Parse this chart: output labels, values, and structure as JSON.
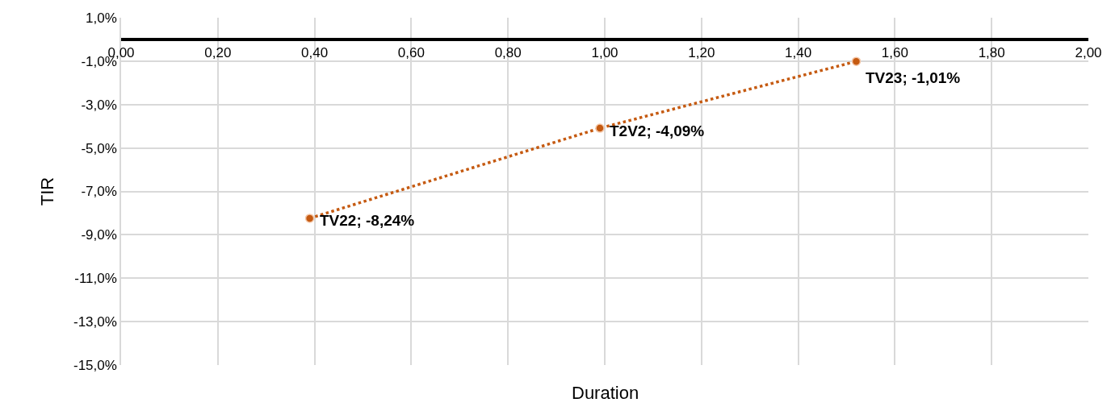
{
  "chart_data": {
    "type": "scatter",
    "xlabel": "Duration",
    "ylabel": "TIR",
    "series": [
      {
        "color": "#c55a11",
        "x": [
          0.39,
          0.99,
          1.52
        ],
        "values": [
          -8.24,
          -4.09,
          -1.01
        ],
        "line_style": "dotted",
        "marker": "circle"
      }
    ],
    "annotations": [
      {
        "text": "TV22; -8,24%",
        "x": 0.39,
        "y": -8.24
      },
      {
        "text": "T2V2; -4,09%",
        "x": 0.99,
        "y": -4.09
      },
      {
        "text": "TV23; -1,01%",
        "x": 1.52,
        "y": -1.01
      }
    ],
    "xlim": [
      0,
      2
    ],
    "xticks": [
      {
        "value": 0,
        "label": "0,00"
      },
      {
        "value": 0.2,
        "label": "0,20"
      },
      {
        "value": 0.4,
        "label": "0,40"
      },
      {
        "value": 0.6,
        "label": "0,60"
      },
      {
        "value": 0.8,
        "label": "0,80"
      },
      {
        "value": 1.0,
        "label": "1,00"
      },
      {
        "value": 1.2,
        "label": "1,20"
      },
      {
        "value": 1.4,
        "label": "1,40"
      },
      {
        "value": 1.6,
        "label": "1,60"
      },
      {
        "value": 1.8,
        "label": "1,80"
      },
      {
        "value": 2.0,
        "label": "2,00"
      }
    ],
    "ylim": [
      -15,
      1
    ],
    "yticks": [
      {
        "value": 1,
        "label": "1,0%"
      },
      {
        "value": -1,
        "label": "-1,0%"
      },
      {
        "value": -3,
        "label": "-3,0%"
      },
      {
        "value": -5,
        "label": "-5,0%"
      },
      {
        "value": -7,
        "label": "-7,0%"
      },
      {
        "value": -9,
        "label": "-9,0%"
      },
      {
        "value": -11,
        "label": "-11,0%"
      },
      {
        "value": -13,
        "label": "-13,0%"
      },
      {
        "value": -15,
        "label": "-15,0%"
      }
    ],
    "grid": true
  }
}
